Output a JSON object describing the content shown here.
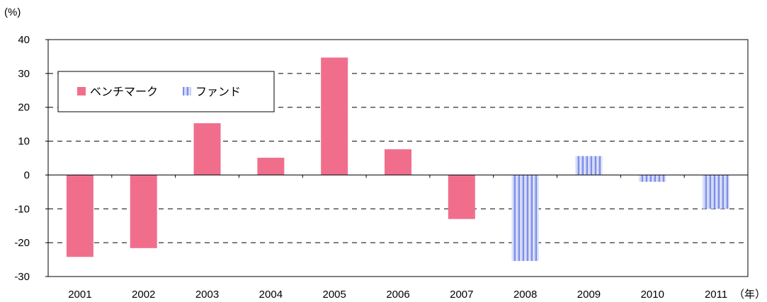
{
  "chart_data": {
    "type": "bar",
    "y_unit_label": "(%)",
    "x_unit_label": "（年）",
    "categories": [
      "2001",
      "2002",
      "2003",
      "2004",
      "2005",
      "2006",
      "2007",
      "2008",
      "2009",
      "2010",
      "2011"
    ],
    "series": [
      {
        "name": "ベンチマーク",
        "color": "#f06e8c",
        "values": [
          -24.2,
          -21.6,
          15.3,
          5.1,
          34.7,
          7.6,
          -13.0,
          null,
          null,
          null,
          null
        ]
      },
      {
        "name": "ファンド",
        "color": "#9aa8ee",
        "values": [
          null,
          null,
          null,
          null,
          null,
          null,
          null,
          -25.4,
          5.6,
          -2.0,
          -10.0
        ]
      }
    ],
    "ylim": [
      -30,
      40
    ],
    "yticks": [
      40,
      30,
      20,
      10,
      0,
      -10,
      -20,
      -30
    ],
    "grid": "horizontal-dashed",
    "legend_position": "top-left"
  }
}
